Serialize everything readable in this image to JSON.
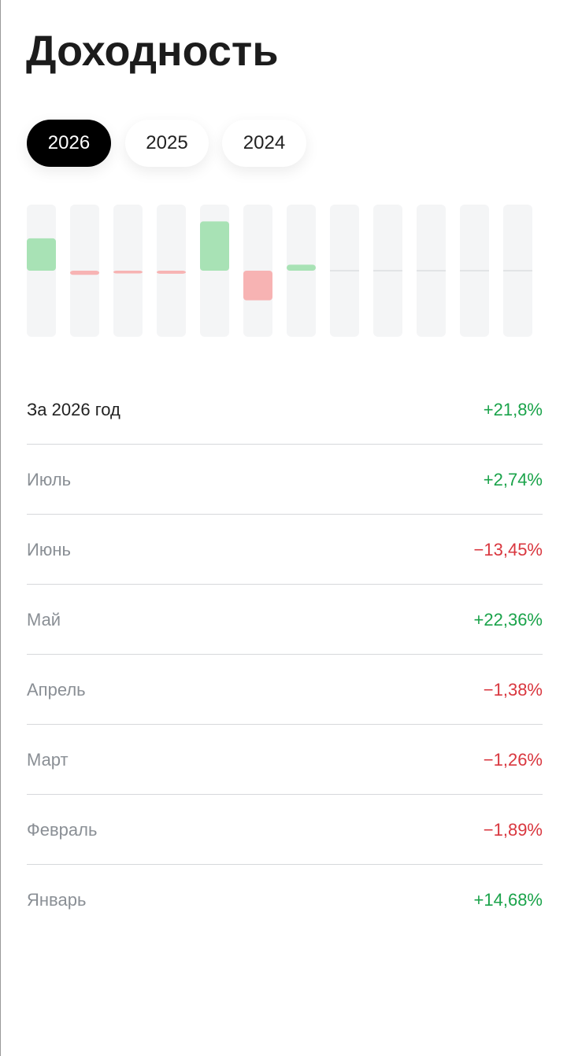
{
  "header": {
    "title": "Доходность"
  },
  "tabs": [
    {
      "label": "2026",
      "active": true
    },
    {
      "label": "2025",
      "active": false
    },
    {
      "label": "2024",
      "active": false
    }
  ],
  "chart_data": {
    "type": "bar",
    "categories": [
      "Январь",
      "Февраль",
      "Март",
      "Апрель",
      "Май",
      "Июнь",
      "Июль",
      null,
      null,
      null,
      null,
      null
    ],
    "values": [
      14.68,
      -1.89,
      -1.26,
      -1.38,
      22.36,
      -13.45,
      2.74,
      null,
      null,
      null,
      null,
      null
    ],
    "value_labels": [
      "+14,68%",
      "−1,89%",
      "−1,26%",
      "−1,38%",
      "+22,36%",
      "−13,45%",
      "+2,74%",
      null,
      null,
      null,
      null,
      null
    ],
    "ylim": [
      -30,
      30
    ],
    "positive_color": "#a8e2b5",
    "negative_color": "#f7b3b3",
    "positive_text_color": "#1aa34a",
    "negative_text_color": "#d9363e"
  },
  "summary": {
    "label": "За 2026 год",
    "value": "+21,8%"
  }
}
